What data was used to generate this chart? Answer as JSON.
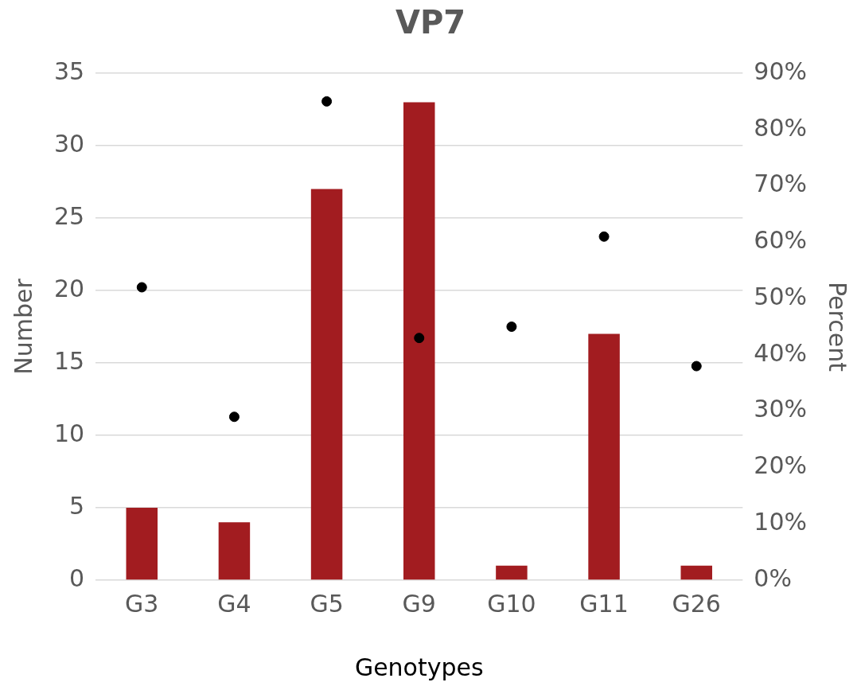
{
  "chart_data": {
    "type": "bar",
    "title": "VP7",
    "xlabel": "Genotypes",
    "ylabel": "Number",
    "y2label": "Percent",
    "categories": [
      "G3",
      "G4",
      "G5",
      "G9",
      "G10",
      "G11",
      "G26"
    ],
    "series": [
      {
        "color": "#a21c20",
        "values": [
          5,
          4,
          27,
          33,
          1,
          17,
          1
        ]
      },
      {
        "type": "scatter",
        "axis": "y2",
        "color": "#000000",
        "x": [
          "G3",
          "G4",
          "G5",
          "G9",
          "G10",
          "G11",
          "G26"
        ],
        "values": [
          52,
          29,
          85,
          43,
          45,
          61,
          38
        ]
      }
    ],
    "ylim": [
      0,
      35
    ],
    "yticks": [
      0,
      5,
      10,
      15,
      20,
      25,
      30,
      35
    ],
    "y2lim": [
      0,
      90
    ],
    "y2ticks": [
      {
        "value": 0,
        "label": "0%"
      },
      {
        "value": 10,
        "label": "10%"
      },
      {
        "value": 20,
        "label": "20%"
      },
      {
        "value": 30,
        "label": "30%"
      },
      {
        "value": 40,
        "label": "40%"
      },
      {
        "value": 50,
        "label": "50%"
      },
      {
        "value": 60,
        "label": "60%"
      },
      {
        "value": 70,
        "label": "70%"
      },
      {
        "value": 80,
        "label": "80%"
      },
      {
        "value": 90,
        "label": "90%"
      }
    ],
    "grid": "y",
    "legend": false,
    "marker": "circle"
  }
}
